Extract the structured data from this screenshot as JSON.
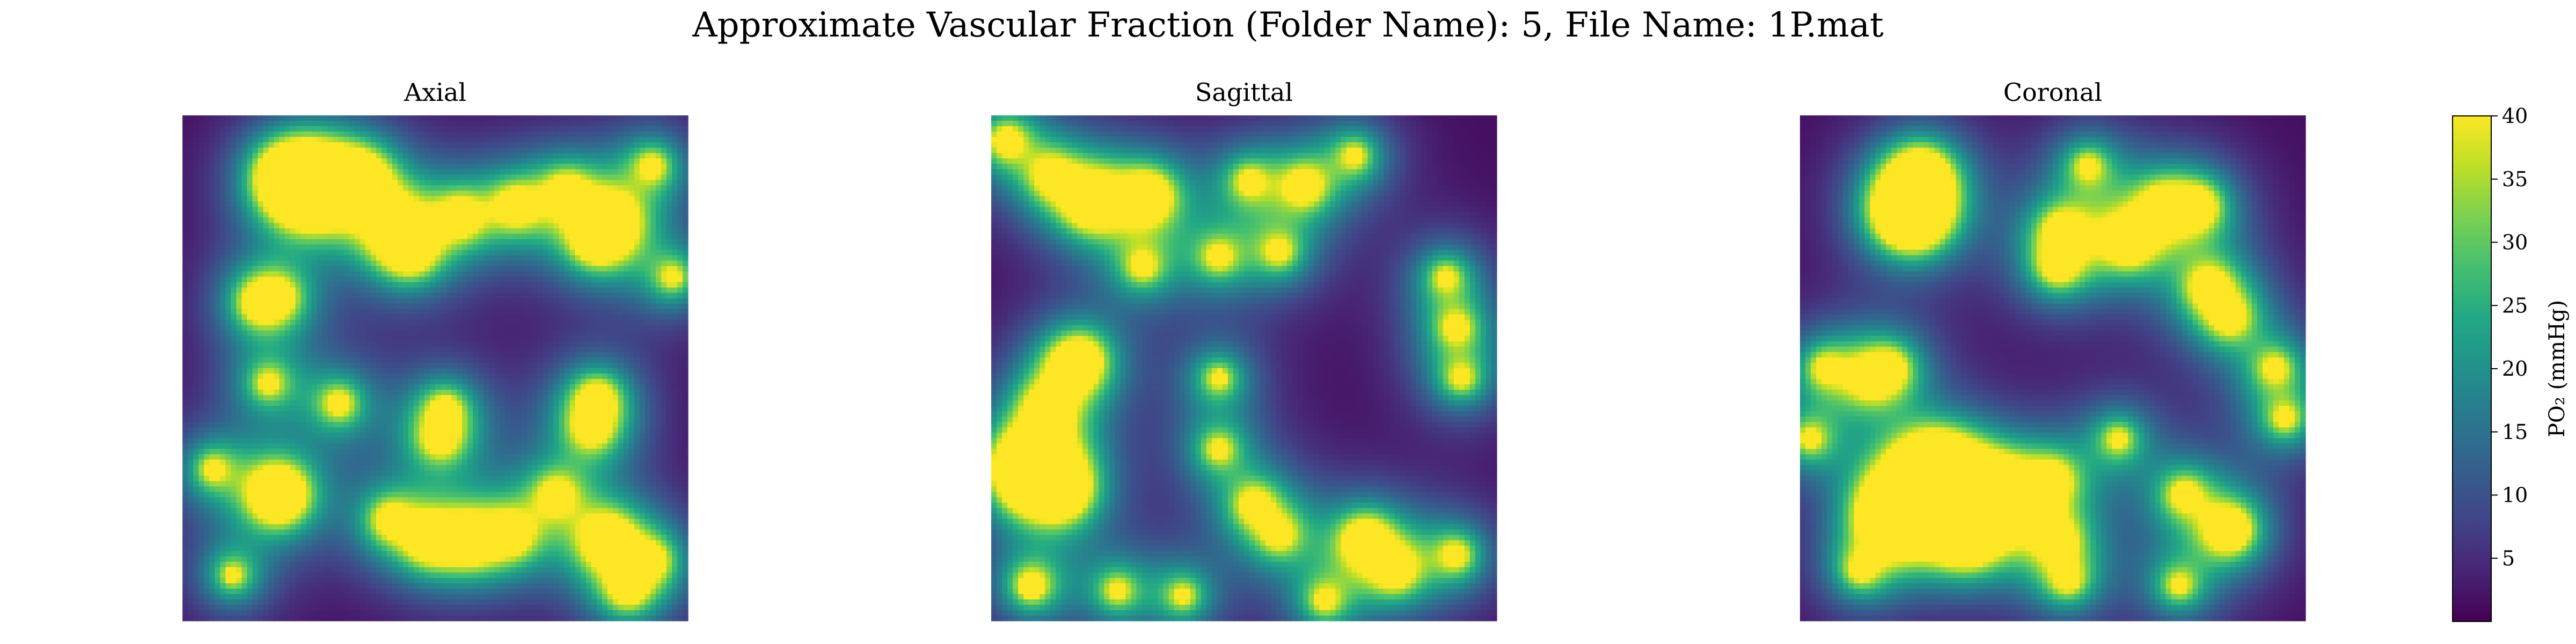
{
  "figure": {
    "title": "Approximate Vascular Fraction (Folder Name): 5, File Name: 1P.mat"
  },
  "chart_data": {
    "type": "heatmap",
    "title": "Approximate Vascular Fraction (Folder Name): 5, File Name: 1P.mat",
    "colormap": "viridis",
    "value_range": [
      0,
      40
    ],
    "colorbar": {
      "label": "PO₂ (mmHg)",
      "ticks": [
        5,
        10,
        15,
        20,
        25,
        30,
        35,
        40
      ],
      "position": "right"
    },
    "panels": [
      {
        "title": "Axial",
        "grid_size": 94,
        "vessels": [
          {
            "x": 0.25,
            "y": 0.14,
            "r": 0.075
          },
          {
            "x": 0.35,
            "y": 0.13,
            "r": 0.045
          },
          {
            "x": 0.2,
            "y": 0.12,
            "r": 0.03
          },
          {
            "x": 0.42,
            "y": 0.22,
            "r": 0.03
          },
          {
            "x": 0.45,
            "y": 0.27,
            "r": 0.03
          },
          {
            "x": 0.55,
            "y": 0.2,
            "r": 0.025
          },
          {
            "x": 0.66,
            "y": 0.18,
            "r": 0.025
          },
          {
            "x": 0.76,
            "y": 0.15,
            "r": 0.02
          },
          {
            "x": 0.85,
            "y": 0.21,
            "r": 0.035
          },
          {
            "x": 0.82,
            "y": 0.25,
            "r": 0.025
          },
          {
            "x": 0.93,
            "y": 0.1,
            "r": 0.018
          },
          {
            "x": 0.97,
            "y": 0.32,
            "r": 0.015
          },
          {
            "x": 0.15,
            "y": 0.37,
            "r": 0.02
          },
          {
            "x": 0.19,
            "y": 0.36,
            "r": 0.015
          },
          {
            "x": 0.17,
            "y": 0.53,
            "r": 0.015
          },
          {
            "x": 0.31,
            "y": 0.57,
            "r": 0.02
          },
          {
            "x": 0.52,
            "y": 0.58,
            "r": 0.015
          },
          {
            "x": 0.51,
            "y": 0.64,
            "r": 0.02
          },
          {
            "x": 0.82,
            "y": 0.56,
            "r": 0.025
          },
          {
            "x": 0.81,
            "y": 0.62,
            "r": 0.02
          },
          {
            "x": 0.06,
            "y": 0.7,
            "r": 0.015
          },
          {
            "x": 0.19,
            "y": 0.75,
            "r": 0.055
          },
          {
            "x": 0.41,
            "y": 0.8,
            "r": 0.02
          },
          {
            "x": 0.49,
            "y": 0.84,
            "r": 0.03
          },
          {
            "x": 0.57,
            "y": 0.84,
            "r": 0.03
          },
          {
            "x": 0.65,
            "y": 0.83,
            "r": 0.025
          },
          {
            "x": 0.74,
            "y": 0.75,
            "r": 0.02
          },
          {
            "x": 0.84,
            "y": 0.84,
            "r": 0.04
          },
          {
            "x": 0.88,
            "y": 0.94,
            "r": 0.02
          },
          {
            "x": 0.93,
            "y": 0.88,
            "r": 0.015
          },
          {
            "x": 0.1,
            "y": 0.91,
            "r": 0.015
          }
        ]
      },
      {
        "title": "Sagittal",
        "grid_size": 94,
        "vessels": [
          {
            "x": 0.03,
            "y": 0.05,
            "r": 0.025
          },
          {
            "x": 0.12,
            "y": 0.12,
            "r": 0.02
          },
          {
            "x": 0.2,
            "y": 0.17,
            "r": 0.045
          },
          {
            "x": 0.31,
            "y": 0.16,
            "r": 0.04
          },
          {
            "x": 0.3,
            "y": 0.3,
            "r": 0.015
          },
          {
            "x": 0.51,
            "y": 0.13,
            "r": 0.015
          },
          {
            "x": 0.62,
            "y": 0.14,
            "r": 0.025
          },
          {
            "x": 0.72,
            "y": 0.08,
            "r": 0.015
          },
          {
            "x": 0.45,
            "y": 0.28,
            "r": 0.015
          },
          {
            "x": 0.57,
            "y": 0.27,
            "r": 0.015
          },
          {
            "x": 0.9,
            "y": 0.32,
            "r": 0.015
          },
          {
            "x": 0.92,
            "y": 0.42,
            "r": 0.015
          },
          {
            "x": 0.93,
            "y": 0.52,
            "r": 0.015
          },
          {
            "x": 0.16,
            "y": 0.5,
            "r": 0.02
          },
          {
            "x": 0.11,
            "y": 0.58,
            "r": 0.025
          },
          {
            "x": 0.18,
            "y": 0.48,
            "r": 0.015
          },
          {
            "x": 0.08,
            "y": 0.7,
            "r": 0.075
          },
          {
            "x": 0.14,
            "y": 0.74,
            "r": 0.04
          },
          {
            "x": 0.45,
            "y": 0.52,
            "r": 0.015
          },
          {
            "x": 0.45,
            "y": 0.66,
            "r": 0.015
          },
          {
            "x": 0.52,
            "y": 0.77,
            "r": 0.02
          },
          {
            "x": 0.57,
            "y": 0.83,
            "r": 0.015
          },
          {
            "x": 0.74,
            "y": 0.84,
            "r": 0.035
          },
          {
            "x": 0.8,
            "y": 0.9,
            "r": 0.025
          },
          {
            "x": 0.92,
            "y": 0.87,
            "r": 0.02
          },
          {
            "x": 0.08,
            "y": 0.93,
            "r": 0.025
          },
          {
            "x": 0.25,
            "y": 0.94,
            "r": 0.015
          },
          {
            "x": 0.38,
            "y": 0.95,
            "r": 0.015
          },
          {
            "x": 0.66,
            "y": 0.96,
            "r": 0.015
          }
        ]
      },
      {
        "title": "Coronal",
        "grid_size": 94,
        "vessels": [
          {
            "x": 0.22,
            "y": 0.19,
            "r": 0.075
          },
          {
            "x": 0.24,
            "y": 0.12,
            "r": 0.04
          },
          {
            "x": 0.52,
            "y": 0.23,
            "r": 0.025
          },
          {
            "x": 0.51,
            "y": 0.3,
            "r": 0.02
          },
          {
            "x": 0.57,
            "y": 0.1,
            "r": 0.015
          },
          {
            "x": 0.65,
            "y": 0.25,
            "r": 0.035
          },
          {
            "x": 0.72,
            "y": 0.18,
            "r": 0.025
          },
          {
            "x": 0.79,
            "y": 0.18,
            "r": 0.025
          },
          {
            "x": 0.81,
            "y": 0.34,
            "r": 0.025
          },
          {
            "x": 0.85,
            "y": 0.4,
            "r": 0.02
          },
          {
            "x": 0.94,
            "y": 0.5,
            "r": 0.015
          },
          {
            "x": 0.18,
            "y": 0.5,
            "r": 0.015
          },
          {
            "x": 0.05,
            "y": 0.5,
            "r": 0.015
          },
          {
            "x": 0.14,
            "y": 0.52,
            "r": 0.015
          },
          {
            "x": 0.27,
            "y": 0.72,
            "r": 0.09
          },
          {
            "x": 0.19,
            "y": 0.79,
            "r": 0.07
          },
          {
            "x": 0.33,
            "y": 0.83,
            "r": 0.05
          },
          {
            "x": 0.38,
            "y": 0.74,
            "r": 0.03
          },
          {
            "x": 0.42,
            "y": 0.76,
            "r": 0.02
          },
          {
            "x": 0.5,
            "y": 0.72,
            "r": 0.02
          },
          {
            "x": 0.51,
            "y": 0.84,
            "r": 0.02
          },
          {
            "x": 0.53,
            "y": 0.92,
            "r": 0.015
          },
          {
            "x": 0.02,
            "y": 0.64,
            "r": 0.015
          },
          {
            "x": 0.12,
            "y": 0.9,
            "r": 0.015
          },
          {
            "x": 0.63,
            "y": 0.64,
            "r": 0.015
          },
          {
            "x": 0.76,
            "y": 0.75,
            "r": 0.02
          },
          {
            "x": 0.85,
            "y": 0.82,
            "r": 0.04
          },
          {
            "x": 0.75,
            "y": 0.93,
            "r": 0.015
          },
          {
            "x": 0.96,
            "y": 0.6,
            "r": 0.015
          }
        ]
      }
    ]
  }
}
